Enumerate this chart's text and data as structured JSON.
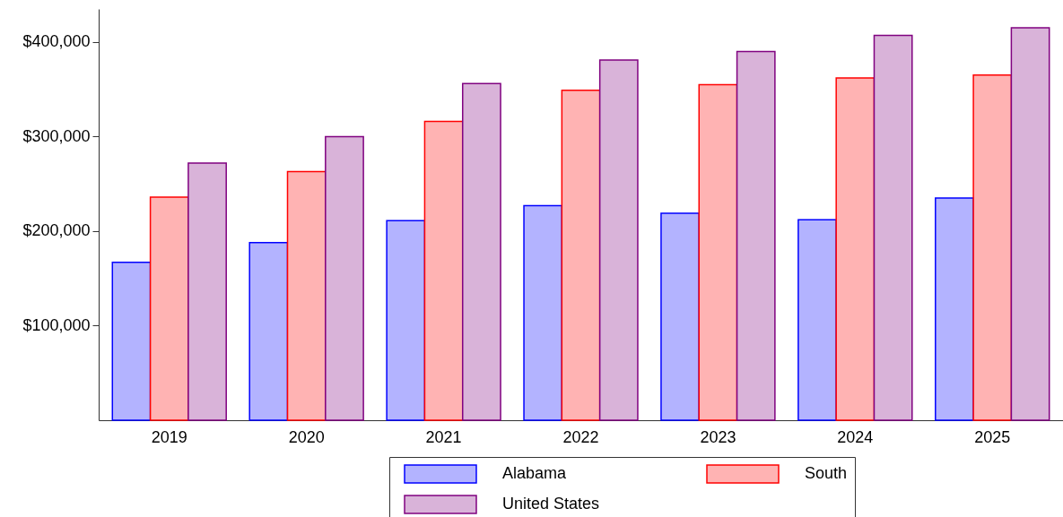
{
  "chart_data": {
    "type": "bar",
    "categories": [
      "2019",
      "2020",
      "2021",
      "2022",
      "2023",
      "2024",
      "2025"
    ],
    "series": [
      {
        "name": "Alabama",
        "color": "#b3b3ff",
        "values": [
          167000,
          188000,
          211000,
          227000,
          219000,
          212000,
          235000
        ]
      },
      {
        "name": "South",
        "color": "#ffb3b3",
        "values": [
          236000,
          263000,
          316000,
          349000,
          355000,
          362000,
          365000
        ]
      },
      {
        "name": "United States",
        "color": "#d9b3d9",
        "values": [
          272000,
          300000,
          356000,
          381000,
          390000,
          407000,
          415000
        ]
      }
    ],
    "ylim": [
      0,
      435000
    ],
    "yticks": [
      {
        "value": 100000,
        "label": "$100,000"
      },
      {
        "value": 200000,
        "label": "$200,000"
      },
      {
        "value": 300000,
        "label": "$300,000"
      },
      {
        "value": 400000,
        "label": "$400,000"
      }
    ],
    "grid": false,
    "legend": "bottom"
  }
}
